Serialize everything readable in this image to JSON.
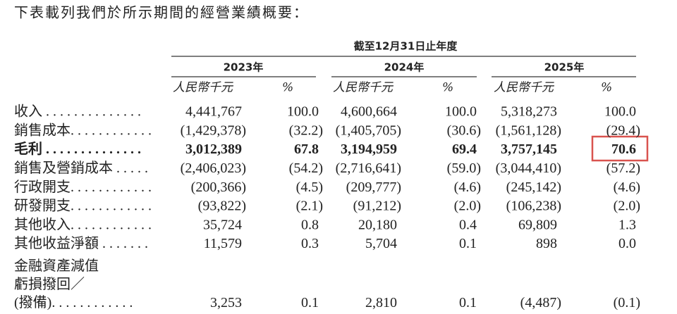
{
  "intro": "下表載列我們於所示期間的經營業績概要：",
  "header": {
    "period": "截至12月31日止年度",
    "years": [
      "2023年",
      "2024年",
      "2025年"
    ],
    "units": [
      "人民幣千元",
      "%",
      "人民幣千元",
      "%",
      "人民幣千元",
      "%"
    ]
  },
  "rows": [
    {
      "label": [
        "收入 . . . . . . . . . . . . . ."
      ],
      "bold": false,
      "cells": [
        "4,441,767",
        "100.0",
        "4,600,664",
        "100.0",
        "5,318,273",
        "100.0"
      ]
    },
    {
      "label": [
        "銷售成本. . . . . . . . . . . ."
      ],
      "bold": false,
      "cells": [
        "(1,429,378)",
        "(32.2)",
        "(1,405,705)",
        "(30.6)",
        "(1,561,128)",
        "(29.4)"
      ]
    },
    {
      "label": [
        "毛利 . . . . . . . . . . . . . ."
      ],
      "bold": true,
      "cells": [
        "3,012,389",
        "67.8",
        "3,194,959",
        "69.4",
        "3,757,145",
        "70.6"
      ]
    },
    {
      "label": [
        "銷售及營銷成本 . . . . ."
      ],
      "bold": false,
      "cells": [
        "(2,406,023)",
        "(54.2)",
        "(2,716,641)",
        "(59.0)",
        "(3,044,410)",
        "(57.2)"
      ]
    },
    {
      "label": [
        "行政開支. . . . . . . . . . . ."
      ],
      "bold": false,
      "cells": [
        "(200,366)",
        "(4.5)",
        "(209,777)",
        "(4.6)",
        "(245,142)",
        "(4.6)"
      ]
    },
    {
      "label": [
        "研發開支. . . . . . . . . . . ."
      ],
      "bold": false,
      "cells": [
        "(93,822)",
        "(2.1)",
        "(91,212)",
        "(2.0)",
        "(106,238)",
        "(2.0)"
      ]
    },
    {
      "label": [
        "其他收入. . . . . . . . . . . ."
      ],
      "bold": false,
      "cells": [
        "35,724",
        "0.8",
        "20,180",
        "0.4",
        "69,809",
        "1.3"
      ]
    },
    {
      "label": [
        "其他收益淨額 . . . . . . ."
      ],
      "bold": false,
      "cells": [
        "11,579",
        "0.3",
        "5,704",
        "0.1",
        "898",
        "0.0"
      ]
    },
    {
      "label": [
        "金融資產減值",
        "虧損撥回／",
        "(撥備). . . . . . . . . . . ."
      ],
      "bold": false,
      "cells": [
        "3,253",
        "0.1",
        "2,810",
        "0.1",
        "(4,487)",
        "(0.1)"
      ]
    }
  ]
}
